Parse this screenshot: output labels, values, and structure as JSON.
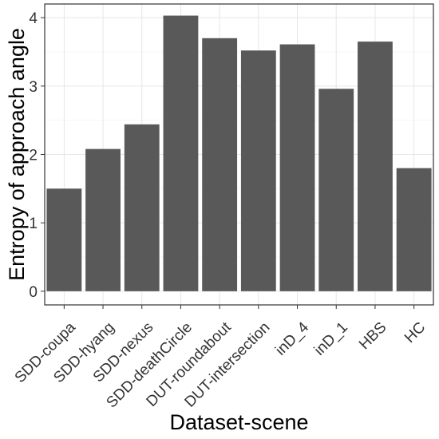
{
  "chart_data": {
    "type": "bar",
    "categories": [
      "SDD-coupa",
      "SDD-hyang",
      "SDD-nexus",
      "SDD-deathCircle",
      "DUT-roundabout",
      "DUT-intersection",
      "inD_4",
      "inD_1",
      "HBS",
      "HC"
    ],
    "values": [
      1.5,
      2.08,
      2.44,
      4.03,
      3.7,
      3.52,
      3.61,
      2.96,
      3.65,
      1.8
    ],
    "xlabel": "Dataset-scene",
    "ylabel": "Entropy of approach angle",
    "ylim": [
      -0.2,
      4.2
    ],
    "yticks": [
      0,
      1,
      2,
      3,
      4
    ],
    "grid": true,
    "bar_color": "#595959",
    "grid_color": "#ebebeb"
  }
}
